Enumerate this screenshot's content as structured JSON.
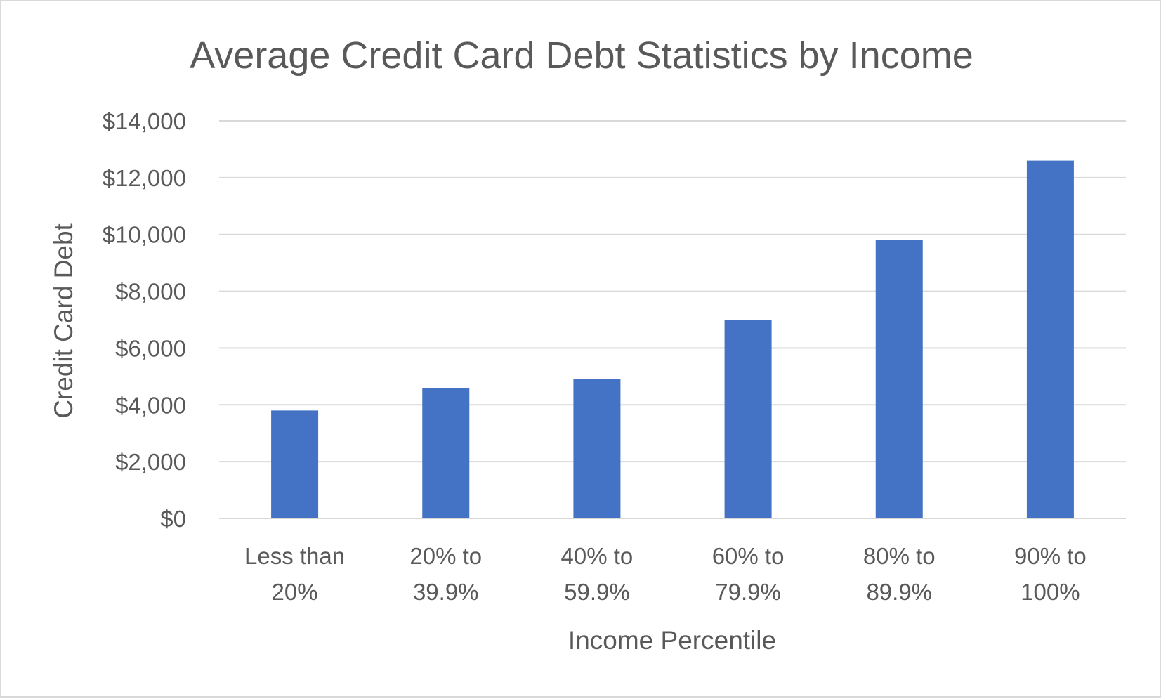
{
  "chart_data": {
    "type": "bar",
    "title": "Average Credit Card Debt Statistics by Income",
    "xlabel": "Income Percentile",
    "ylabel": "Credit Card Debt",
    "categories": [
      [
        "Less than",
        "20%"
      ],
      [
        "20% to",
        "39.9%"
      ],
      [
        "40% to",
        "59.9%"
      ],
      [
        "60% to",
        "79.9%"
      ],
      [
        "80% to",
        "89.9%"
      ],
      [
        "90% to",
        "100%"
      ]
    ],
    "values": [
      3800,
      4600,
      4900,
      7000,
      9800,
      12600
    ],
    "ylim": [
      0,
      14000
    ],
    "yticks": [
      0,
      2000,
      4000,
      6000,
      8000,
      10000,
      12000,
      14000
    ],
    "ytick_labels": [
      "$0",
      "$2,000",
      "$4,000",
      "$6,000",
      "$8,000",
      "$10,000",
      "$12,000",
      "$14,000"
    ],
    "grid": true,
    "legend": "none",
    "bar_color": "#4472c4"
  }
}
